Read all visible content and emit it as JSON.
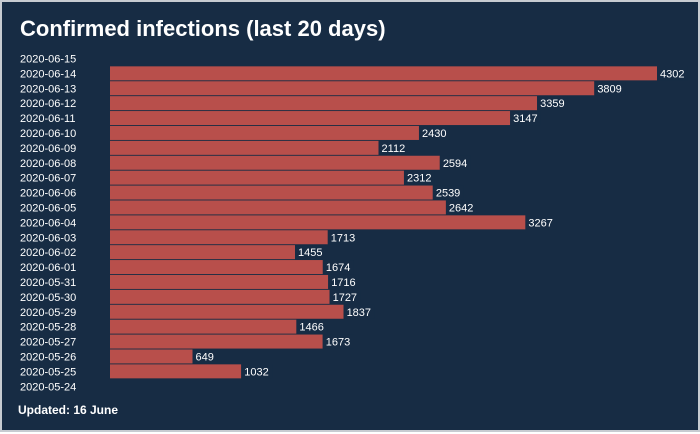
{
  "title": "Confirmed infections (last 20 days)",
  "footer": "Updated: 16 June",
  "colors": {
    "background": "#172c44",
    "bar": "#b84f4b",
    "label_bg": "#172c44",
    "text": "#ffffff"
  },
  "chart_data": {
    "type": "bar",
    "orientation": "horizontal",
    "title": "Confirmed infections (last 20 days)",
    "categories": [
      "2020-06-15",
      "2020-06-14",
      "2020-06-13",
      "2020-06-12",
      "2020-06-11",
      "2020-06-10",
      "2020-06-09",
      "2020-06-08",
      "2020-06-07",
      "2020-06-06",
      "2020-06-05",
      "2020-06-04",
      "2020-06-03",
      "2020-06-02",
      "2020-06-01",
      "2020-05-31",
      "2020-05-30",
      "2020-05-29",
      "2020-05-28",
      "2020-05-27",
      "2020-05-26",
      "2020-05-25",
      "2020-05-24"
    ],
    "values": [
      null,
      4302,
      3809,
      3359,
      3147,
      2430,
      2112,
      2594,
      2312,
      2539,
      2642,
      3267,
      1713,
      1455,
      1674,
      1716,
      1727,
      1837,
      1466,
      1673,
      649,
      1032,
      null
    ],
    "xlim": [
      0,
      4302
    ],
    "data_labels": true,
    "grid": false,
    "legend": "none"
  }
}
